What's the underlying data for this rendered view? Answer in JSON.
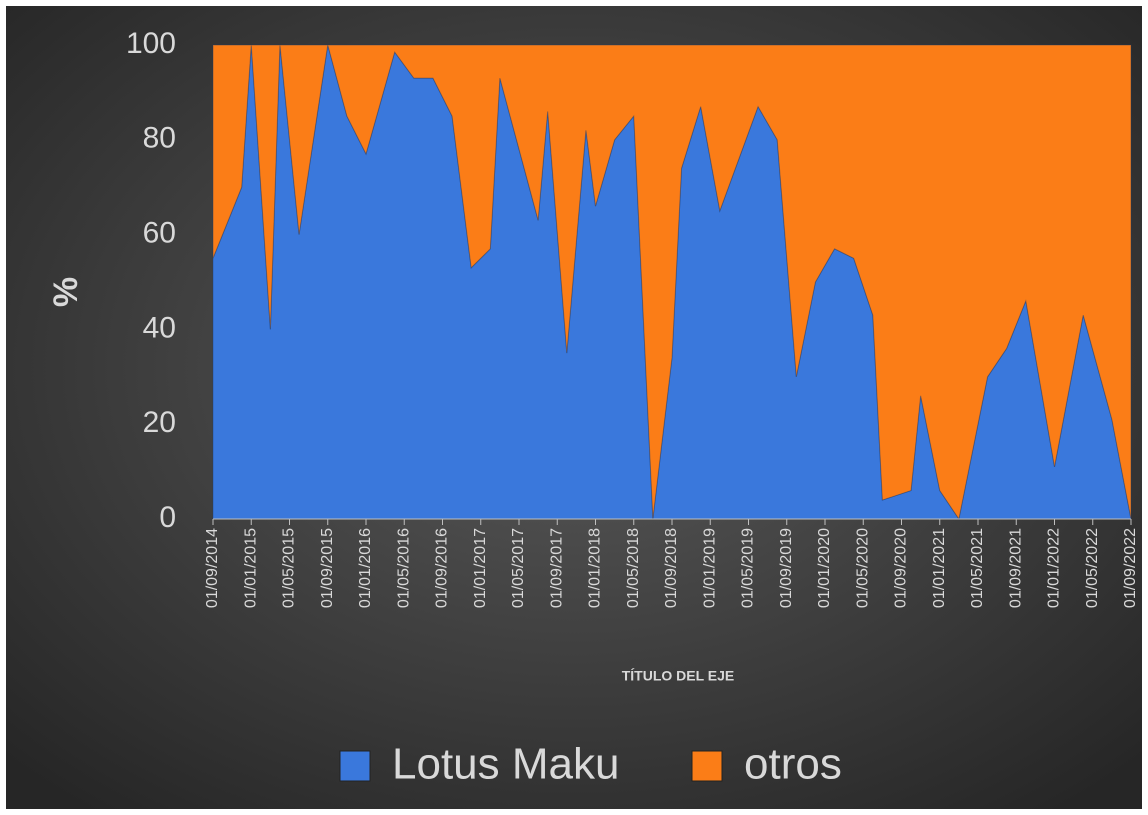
{
  "chart_data": {
    "type": "area",
    "stacked": true,
    "y_label": "%",
    "x_label": "TÍTULO DEL EJE",
    "x": [
      "01/09/2014",
      "01/12/2014",
      "01/01/2015",
      "01/03/2015",
      "01/04/2015",
      "01/06/2015",
      "01/09/2015",
      "01/11/2015",
      "01/01/2016",
      "01/04/2016",
      "01/06/2016",
      "01/08/2016",
      "01/10/2016",
      "01/12/2016",
      "01/02/2017",
      "01/03/2017",
      "01/05/2017",
      "01/07/2017",
      "01/08/2017",
      "01/10/2017",
      "01/12/2017",
      "01/01/2018",
      "01/03/2018",
      "01/05/2018",
      "01/07/2018",
      "01/09/2018",
      "01/10/2018",
      "01/12/2018",
      "01/02/2019",
      "01/06/2019",
      "01/08/2019",
      "01/10/2019",
      "01/12/2019",
      "01/02/2020",
      "01/04/2020",
      "01/06/2020",
      "01/07/2020",
      "01/10/2020",
      "01/11/2020",
      "01/01/2021",
      "01/03/2021",
      "01/06/2021",
      "01/08/2021",
      "01/10/2021",
      "01/01/2022",
      "01/04/2022",
      "01/07/2022",
      "01/09/2022"
    ],
    "series": [
      {
        "name": "Lotus Maku",
        "color": "#3a78dc",
        "values": [
          55,
          70,
          100,
          40,
          100,
          60,
          100,
          85,
          77,
          98.5,
          93,
          93,
          85,
          53,
          57,
          93,
          78,
          63,
          86,
          35,
          82,
          66,
          80,
          85,
          0,
          34,
          74,
          87,
          65,
          87,
          80,
          30,
          50,
          57,
          55,
          43,
          4,
          6,
          26,
          6,
          0,
          30,
          36,
          46,
          11,
          43,
          21,
          0
        ]
      },
      {
        "name": "otros",
        "color": "#fb7d17",
        "values": [
          45,
          30,
          0,
          60,
          0,
          40,
          0,
          15,
          23,
          1.5,
          7,
          7,
          15,
          47,
          43,
          7,
          22,
          37,
          14,
          65,
          18,
          34,
          20,
          15,
          100,
          66,
          26,
          13,
          35,
          13,
          20,
          70,
          50,
          43,
          45,
          57,
          96,
          94,
          74,
          94,
          100,
          70,
          64,
          54,
          89,
          57,
          79,
          100
        ]
      }
    ],
    "xlim": [
      "01/09/2014",
      "01/09/2022"
    ],
    "xticks": [
      "01/09/2014",
      "01/01/2015",
      "01/05/2015",
      "01/09/2015",
      "01/01/2016",
      "01/05/2016",
      "01/09/2016",
      "01/01/2017",
      "01/05/2017",
      "01/09/2017",
      "01/01/2018",
      "01/05/2018",
      "01/09/2018",
      "01/01/2019",
      "01/05/2019",
      "01/09/2019",
      "01/01/2020",
      "01/05/2020",
      "01/09/2020",
      "01/01/2021",
      "01/05/2021",
      "01/09/2021",
      "01/01/2022",
      "01/05/2022",
      "01/09/2022"
    ],
    "ylim": [
      0,
      100
    ],
    "yticks": [
      0,
      20,
      40,
      60,
      80,
      100
    ],
    "legend": "bottom"
  }
}
